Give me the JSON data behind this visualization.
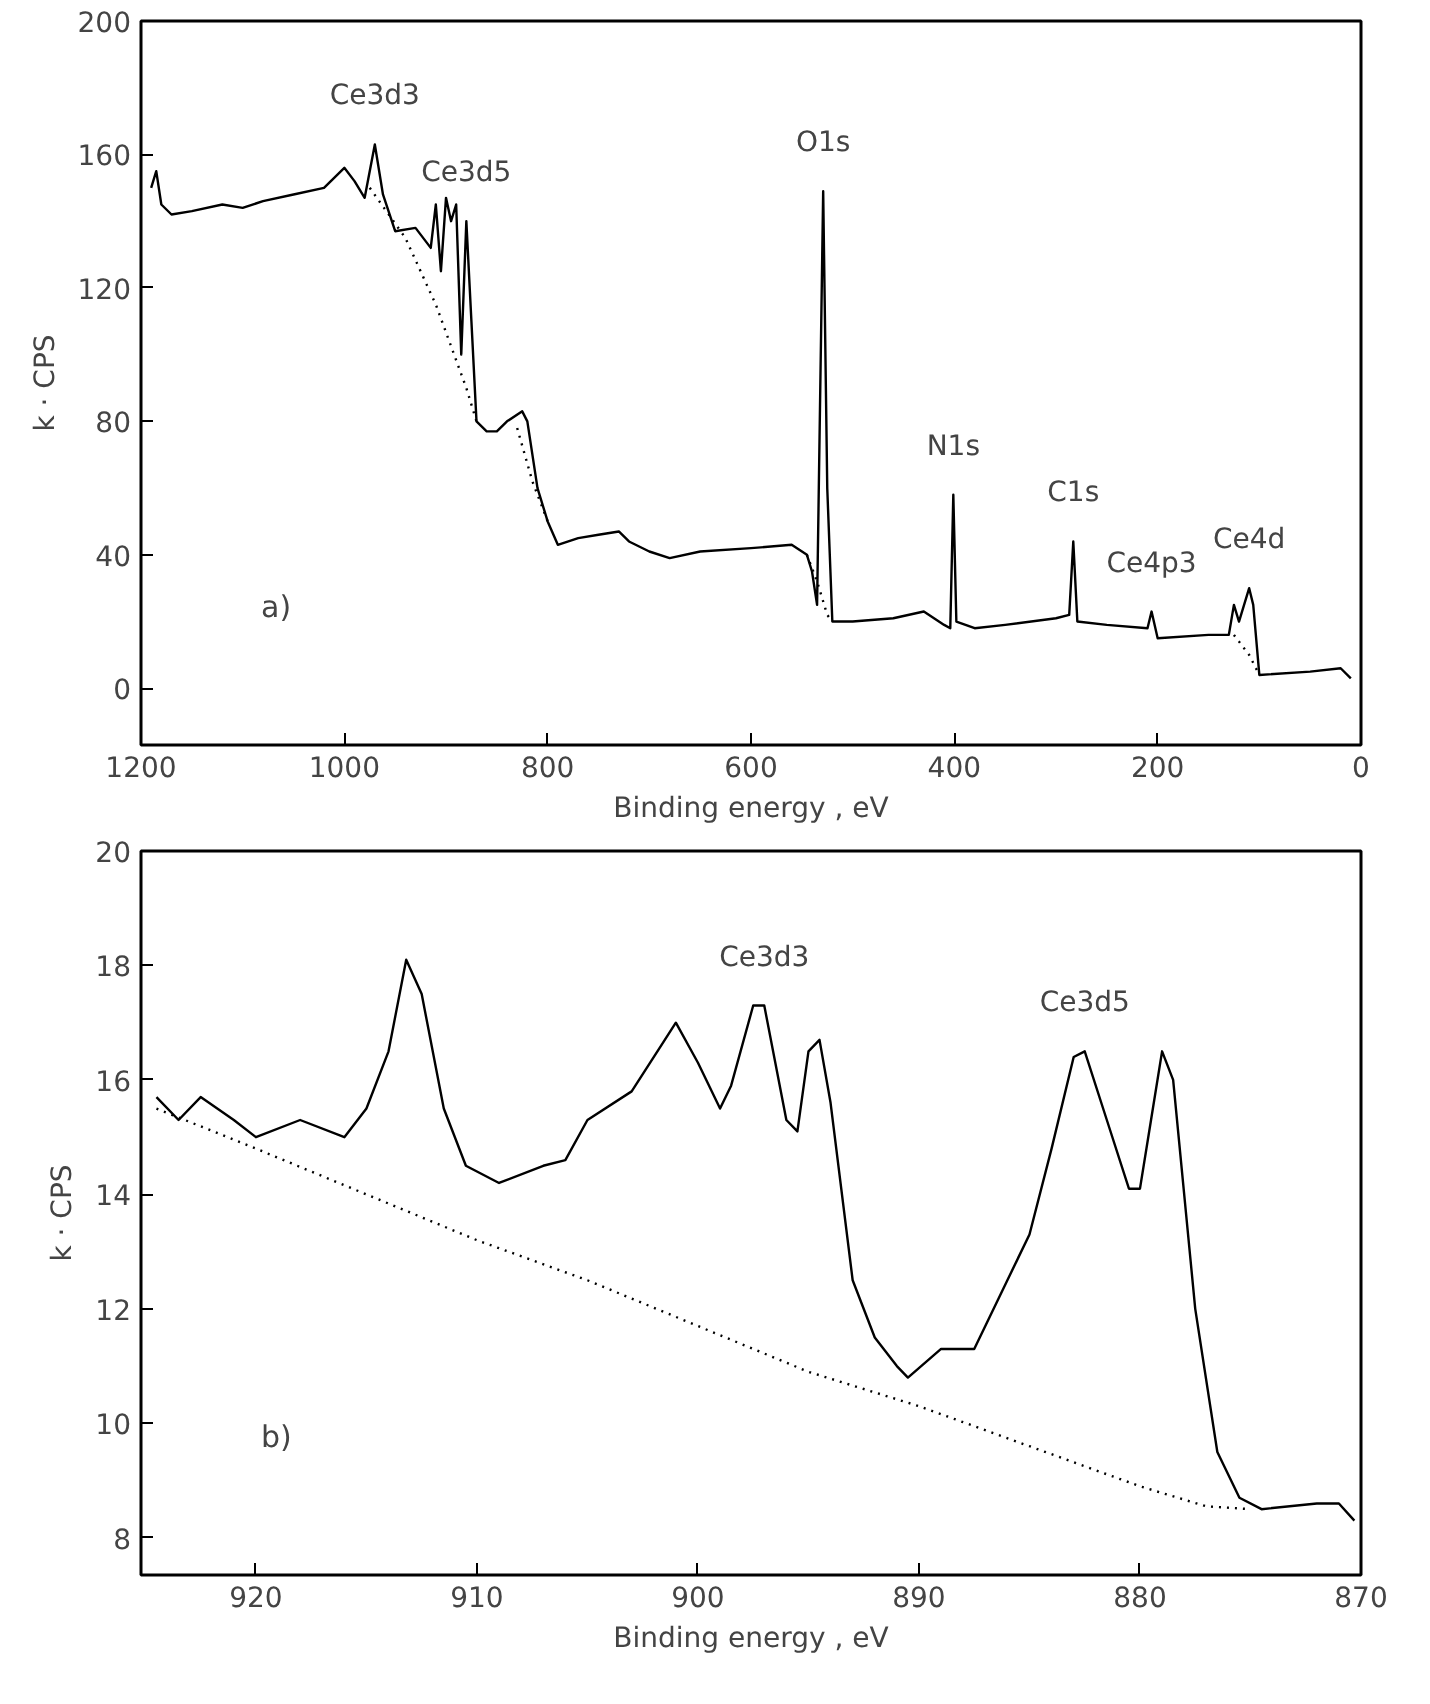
{
  "chart_data": [
    {
      "type": "line",
      "xlabel": "Binding energy , eV",
      "ylabel": "k · CPS",
      "xlim": [
        1200,
        0
      ],
      "ylim": [
        -17,
        200
      ],
      "xticks": [
        1200,
        1000,
        800,
        600,
        400,
        200,
        0
      ],
      "yticks": [
        0,
        40,
        80,
        120,
        160,
        200
      ],
      "annotations": [
        "a)",
        {
          "text": "Ce3d3",
          "x": 970,
          "y": 163
        },
        {
          "text": "Ce3d5",
          "x": 880,
          "y": 140
        },
        {
          "text": "O1s",
          "x": 529,
          "y": 149
        },
        {
          "text": "N1s",
          "x": 401,
          "y": 58
        },
        {
          "text": "C1s",
          "x": 283,
          "y": 44
        },
        {
          "text": "Ce4p3",
          "x": 206,
          "y": 23
        },
        {
          "text": "Ce4d",
          "x": 110,
          "y": 30
        }
      ],
      "series": [
        {
          "color": "#000000",
          "line_style": "solid",
          "x": [
            1190,
            1185,
            1180,
            1170,
            1150,
            1120,
            1100,
            1080,
            1050,
            1020,
            1000,
            990,
            980,
            970,
            962,
            950,
            930,
            915,
            910,
            905,
            900,
            895,
            890,
            885,
            880,
            875,
            870,
            860,
            850,
            840,
            825,
            820,
            810,
            800,
            790,
            770,
            750,
            730,
            720,
            700,
            680,
            650,
            600,
            560,
            545,
            540,
            535,
            529,
            525,
            520,
            500,
            460,
            430,
            410,
            404,
            401,
            398,
            380,
            350,
            300,
            287,
            283,
            279,
            250,
            210,
            206,
            200,
            150,
            130,
            125,
            120,
            110,
            106,
            100,
            50,
            20,
            10
          ],
          "values": [
            150,
            155,
            145,
            142,
            143,
            145,
            144,
            146,
            148,
            150,
            156,
            152,
            147,
            163,
            148,
            137,
            138,
            132,
            145,
            125,
            147,
            140,
            145,
            100,
            140,
            110,
            80,
            77,
            77,
            80,
            83,
            80,
            60,
            50,
            43,
            45,
            46,
            47,
            44,
            41,
            39,
            41,
            42,
            43,
            40,
            35,
            25,
            149,
            60,
            20,
            20,
            21,
            23,
            19,
            18,
            58,
            20,
            18,
            19,
            21,
            22,
            44,
            20,
            19,
            18,
            23,
            15,
            16,
            16,
            25,
            20,
            30,
            25,
            4,
            5,
            6,
            3
          ]
        },
        {
          "color": "#000000",
          "line_style": "dotted",
          "x": [
            975,
            940,
            910,
            880,
            870,
            850,
            830,
            815,
            800,
            790,
            560,
            545,
            535,
            525,
            520,
            500,
            135,
            125,
            110,
            100
          ],
          "values": [
            150,
            135,
            115,
            90,
            80,
            null,
            78,
            62,
            50,
            null,
            null,
            40,
            32,
            22,
            20,
            null,
            null,
            16,
            10,
            4
          ]
        }
      ]
    },
    {
      "type": "line",
      "xlabel": "Binding energy , eV",
      "ylabel": "k · CPS",
      "xlim": [
        925.2,
        870
      ],
      "ylim": [
        7.35,
        20
      ],
      "xticks": [
        920,
        910,
        900,
        890,
        880,
        870
      ],
      "yticks": [
        8,
        10,
        12,
        14,
        16,
        18,
        20
      ],
      "annotations": [
        "b)",
        {
          "text": "Ce3d3",
          "x": 897,
          "y": 17.3
        },
        {
          "text": "Ce3d5",
          "x": 882.5,
          "y": 16.5
        }
      ],
      "series": [
        {
          "color": "#000000",
          "line_style": "solid",
          "x": [
            924.5,
            923.5,
            922.5,
            921,
            920,
            918,
            916,
            915,
            914,
            913.2,
            912.5,
            911.5,
            910.5,
            909,
            907,
            906,
            905,
            903,
            901.5,
            901,
            900,
            899,
            898.5,
            897.5,
            897,
            896,
            895.5,
            895,
            894.5,
            894,
            893,
            892,
            891,
            890.5,
            889,
            887.5,
            886,
            885,
            884,
            883,
            882.5,
            881.5,
            880.5,
            880,
            879.5,
            879,
            878.5,
            877.5,
            876.5,
            875.5,
            874.5,
            872,
            871,
            870.3
          ],
          "values": [
            15.7,
            15.3,
            15.7,
            15.3,
            15.0,
            15.3,
            15.0,
            15.5,
            16.5,
            18.1,
            17.5,
            15.5,
            14.5,
            14.2,
            14.5,
            14.6,
            15.3,
            15.8,
            16.7,
            17.0,
            16.3,
            15.5,
            15.9,
            17.3,
            17.3,
            15.3,
            15.1,
            16.5,
            16.7,
            15.6,
            12.5,
            11.5,
            11.0,
            10.8,
            11.3,
            11.3,
            12.5,
            13.3,
            14.8,
            16.4,
            16.5,
            15.3,
            14.1,
            14.1,
            15.3,
            16.5,
            16.0,
            12.0,
            9.5,
            8.7,
            8.5,
            8.6,
            8.6,
            8.3
          ]
        },
        {
          "color": "#000000",
          "line_style": "dotted",
          "x": [
            924.5,
            920,
            915,
            910,
            905,
            900,
            895,
            890,
            885,
            880,
            877,
            875
          ],
          "values": [
            15.5,
            14.8,
            14.0,
            13.2,
            12.5,
            11.7,
            10.9,
            10.3,
            9.6,
            8.9,
            8.55,
            8.5
          ]
        }
      ]
    }
  ]
}
